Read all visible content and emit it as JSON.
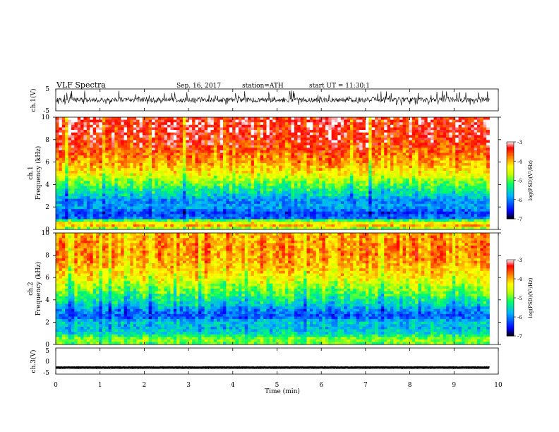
{
  "header": {
    "title": "VLF  Spectra",
    "date": "Sep. 16, 2017",
    "station": "station=ATH",
    "start": "start  UT  =   11:30:1"
  },
  "chart_data": [
    {
      "type": "line",
      "name": "ch1-waveform",
      "ylabel": "ch.1(V)",
      "ylim": [
        -5,
        5
      ],
      "yticks": [
        "5",
        "-5"
      ],
      "xlim": [
        0,
        10
      ],
      "x_end": 9.8,
      "baseline": 0,
      "amplitude_hint": [
        -2.5,
        4.5
      ]
    },
    {
      "type": "heatmap",
      "name": "ch1-spectrogram",
      "ylabel": "ch.1\nFrequency (kHz)",
      "ylim": [
        0,
        10
      ],
      "yticks": [
        "0",
        "2",
        "4",
        "6",
        "8",
        "10"
      ],
      "xlim": [
        0,
        10
      ],
      "x_end": 9.8,
      "colorbar": {
        "label": "log(PSD)(V²/Hz)",
        "range": [
          -7,
          -3
        ],
        "ticks": [
          "-3",
          "-4",
          "-5",
          "-6",
          "-7"
        ]
      },
      "log_psd_profile": [
        {
          "f": 0.0,
          "v": -5.2
        },
        {
          "f": 0.3,
          "v": -3.9
        },
        {
          "f": 0.7,
          "v": -4.6
        },
        {
          "f": 1.0,
          "v": -6.1
        },
        {
          "f": 1.5,
          "v": -6.3
        },
        {
          "f": 2.0,
          "v": -5.8
        },
        {
          "f": 2.5,
          "v": -6.0
        },
        {
          "f": 3.0,
          "v": -5.6
        },
        {
          "f": 3.5,
          "v": -5.3
        },
        {
          "f": 4.0,
          "v": -5.0
        },
        {
          "f": 5.0,
          "v": -4.3
        },
        {
          "f": 6.0,
          "v": -3.9
        },
        {
          "f": 7.0,
          "v": -3.6
        },
        {
          "f": 8.0,
          "v": -3.4
        },
        {
          "f": 9.0,
          "v": -3.3
        },
        {
          "f": 10.0,
          "v": -3.3
        }
      ]
    },
    {
      "type": "heatmap",
      "name": "ch2-spectrogram",
      "ylabel": "ch.2\nFrequency (kHz)",
      "ylim": [
        0,
        10
      ],
      "yticks": [
        "0",
        "2",
        "4",
        "6",
        "8",
        "10"
      ],
      "xlim": [
        0,
        10
      ],
      "x_end": 9.8,
      "colorbar": {
        "label": "log(PSD)(V²/Hz)",
        "range": [
          -7,
          -3
        ],
        "ticks": [
          "-3",
          "-4",
          "-5",
          "-6",
          "-7"
        ]
      },
      "log_psd_profile": [
        {
          "f": 0.0,
          "v": -5.0
        },
        {
          "f": 0.5,
          "v": -4.8
        },
        {
          "f": 1.0,
          "v": -5.5
        },
        {
          "f": 1.5,
          "v": -5.7
        },
        {
          "f": 2.0,
          "v": -5.6
        },
        {
          "f": 2.5,
          "v": -6.2
        },
        {
          "f": 3.0,
          "v": -6.0
        },
        {
          "f": 3.5,
          "v": -5.6
        },
        {
          "f": 4.0,
          "v": -5.3
        },
        {
          "f": 5.0,
          "v": -4.8
        },
        {
          "f": 6.0,
          "v": -4.3
        },
        {
          "f": 7.0,
          "v": -4.0
        },
        {
          "f": 8.0,
          "v": -3.8
        },
        {
          "f": 9.0,
          "v": -3.8
        },
        {
          "f": 10.0,
          "v": -3.9
        }
      ]
    },
    {
      "type": "line",
      "name": "ch3-waveform",
      "ylabel": "ch.3(V)",
      "ylim": [
        -5,
        5
      ],
      "yticks": [
        "5",
        "0",
        "-5"
      ],
      "xlim": [
        0,
        10
      ],
      "x_end": 9.8,
      "baseline": -2.5,
      "amplitude_hint": [
        -2.8,
        -2.2
      ]
    }
  ],
  "xaxis": {
    "label": "Time  (min)",
    "ticks": [
      "0",
      "1",
      "2",
      "3",
      "4",
      "5",
      "6",
      "7",
      "8",
      "9",
      "10"
    ]
  },
  "colors": {
    "scale": [
      "#000000",
      "#0000ff",
      "#00b4ff",
      "#00ff64",
      "#c8ff00",
      "#ffff00",
      "#ff8000",
      "#ff0000",
      "#ffffff"
    ]
  }
}
